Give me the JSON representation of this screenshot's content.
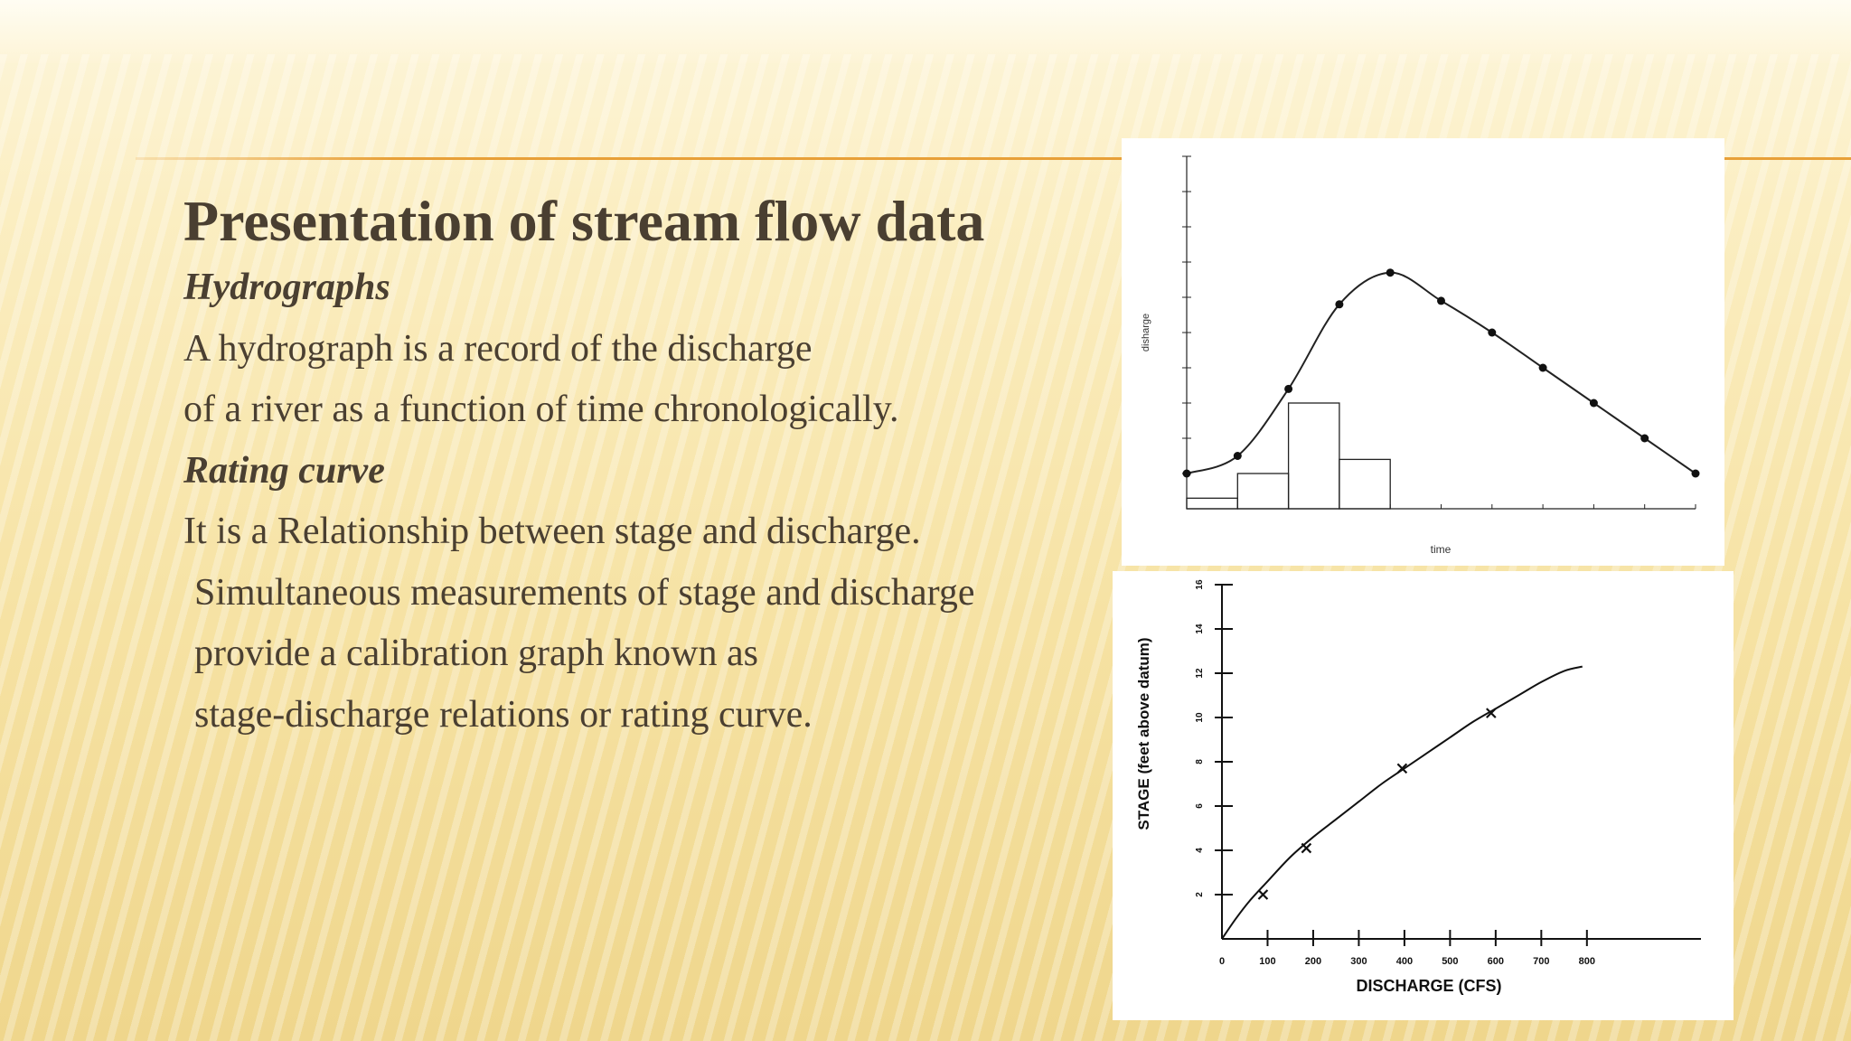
{
  "slide": {
    "title": "Presentation of stream flow data",
    "lines": [
      {
        "text": "Hydrographs",
        "style": "sub"
      },
      {
        "text": "A hydrograph is a record of the discharge",
        "style": "body"
      },
      {
        "text": "of a river as a function of time chronologically.",
        "style": "body"
      },
      {
        "text": "Rating curve",
        "style": "sub"
      },
      {
        "text": "It is a Relationship between stage and discharge.",
        "style": "body"
      },
      {
        "text": "Simultaneous measurements of stage and discharge",
        "style": "indent"
      },
      {
        "text": "provide a calibration graph known as",
        "style": "indent"
      },
      {
        "text": "stage-discharge relations or rating curve.",
        "style": "indent"
      }
    ]
  },
  "chart_data": [
    {
      "type": "line",
      "title": "",
      "xlabel": "time",
      "ylabel": "disharge",
      "xlim": [
        0,
        10
      ],
      "ylim": [
        0,
        10
      ],
      "series": [
        {
          "x": [
            0,
            1,
            2,
            3,
            4,
            5,
            6,
            7,
            8,
            9,
            10
          ],
          "values": [
            1.0,
            1.5,
            3.4,
            5.8,
            6.7,
            5.9,
            5.0,
            4.0,
            3.0,
            2.0,
            1.0
          ]
        }
      ],
      "bars": [
        {
          "x0": 0,
          "x1": 1,
          "value": 0.3
        },
        {
          "x0": 1,
          "x1": 2,
          "value": 1.0
        },
        {
          "x0": 2,
          "x1": 3,
          "value": 3.0
        },
        {
          "x0": 3,
          "x1": 4,
          "value": 1.4
        }
      ]
    },
    {
      "type": "line",
      "title": "",
      "xlabel": "DISCHARGE (CFS)",
      "ylabel": "STAGE (feet above datum)",
      "xlim": [
        0,
        1050
      ],
      "ylim": [
        0,
        16
      ],
      "x_ticks": [
        "0",
        "100",
        "200",
        "300",
        "400",
        "500",
        "600",
        "700",
        "800"
      ],
      "y_ticks": [
        "2",
        "4",
        "6",
        "8",
        "10",
        "12",
        "14",
        "16"
      ],
      "series": [
        {
          "x": [
            0,
            30,
            60,
            100,
            150,
            200,
            250,
            300,
            350,
            400,
            450,
            500,
            550,
            600,
            650,
            700,
            750,
            790
          ],
          "values": [
            0,
            0.9,
            1.7,
            2.6,
            3.7,
            4.6,
            5.4,
            6.2,
            7.0,
            7.7,
            8.4,
            9.1,
            9.8,
            10.4,
            11.0,
            11.6,
            12.1,
            12.3
          ]
        }
      ],
      "measurements": [
        {
          "x": 90,
          "y": 2.0
        },
        {
          "x": 185,
          "y": 4.1
        },
        {
          "x": 395,
          "y": 7.7
        },
        {
          "x": 590,
          "y": 10.2
        }
      ]
    }
  ]
}
